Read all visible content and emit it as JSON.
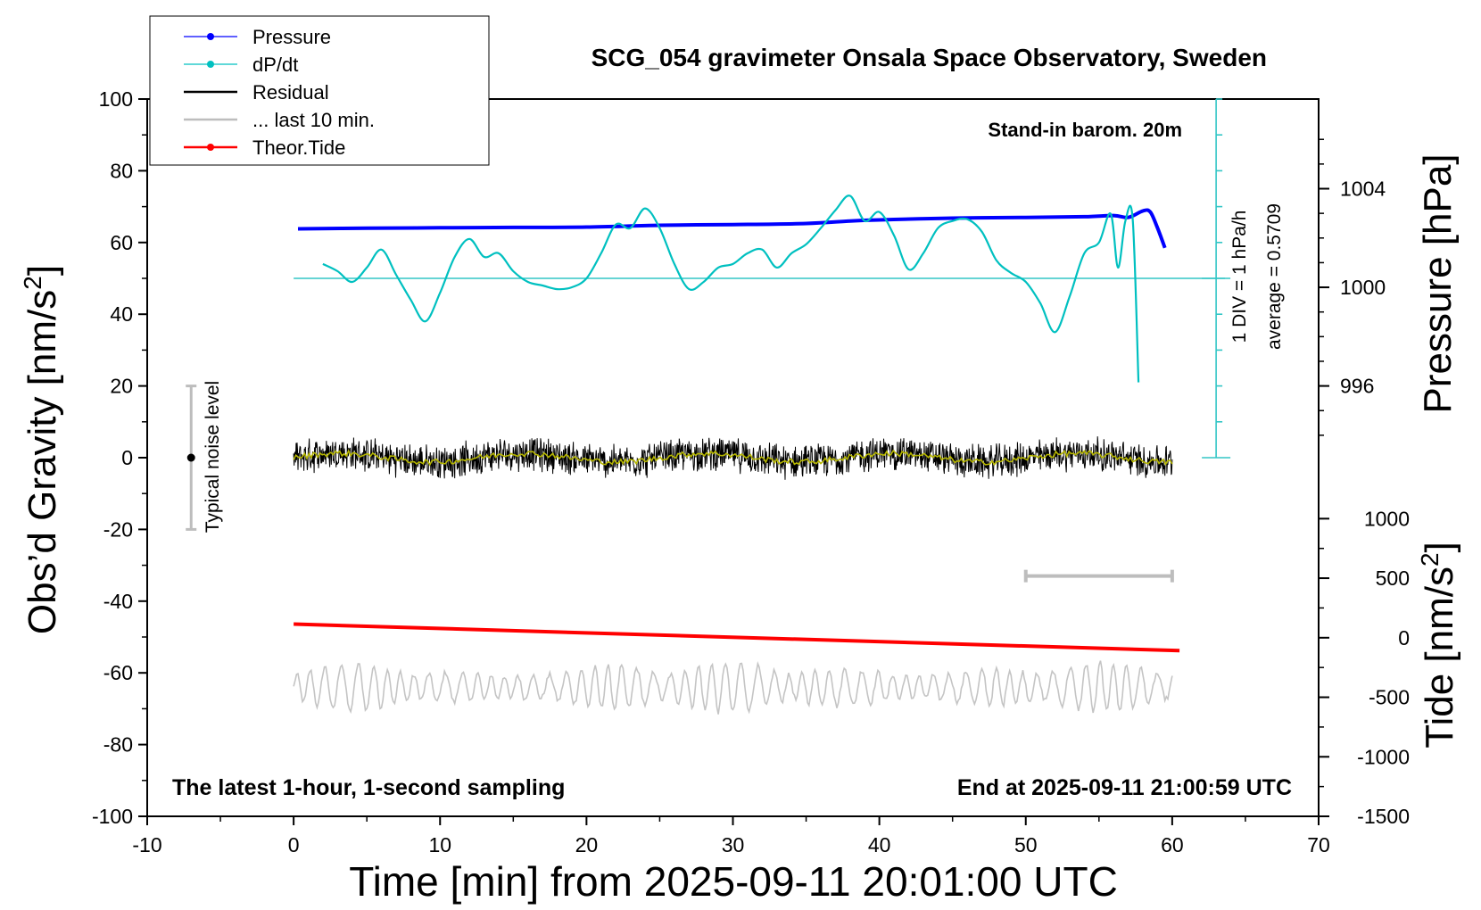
{
  "chart_data": {
    "type": "line",
    "title": "SCG_054 gravimeter Onsala Space Observatory, Sweden",
    "xlabel": "Time [min] from 2025-09-11 20:01:00 UTC",
    "ylabel_left_main": "Obs’d Gravity [nm/s",
    "ylabel_left_sup": "2",
    "ylabel_left_end": "]",
    "ylabel_right_top": "Pressure [hPa]",
    "ylabel_right_bottom_main": "Tide [nm/s",
    "ylabel_right_bottom_sup": "2",
    "ylabel_right_bottom_end": "]",
    "xlim": [
      -10,
      70
    ],
    "ylim": [
      -100,
      100
    ],
    "x_ticks": [
      "-10",
      "0",
      "10",
      "20",
      "30",
      "40",
      "50",
      "60",
      "70"
    ],
    "y_ticks": [
      "-100",
      "-80",
      "-60",
      "-40",
      "-20",
      "0",
      "20",
      "40",
      "60",
      "80",
      "100"
    ],
    "pressure_axis": {
      "ticks": [
        "996",
        "1000",
        "1004"
      ],
      "tick_values": [
        996,
        1000,
        1004
      ],
      "gravity_equiv": [
        [
          996,
          20
        ],
        [
          1000,
          50
        ],
        [
          1004,
          75
        ]
      ]
    },
    "tide_axis": {
      "ticks": [
        "1000",
        "500",
        "0",
        "-500",
        "-1000",
        "-1500"
      ],
      "tick_values": [
        1000,
        500,
        0,
        -500,
        -1000,
        -1500
      ],
      "gravity_equiv": [
        [
          1000,
          -17
        ],
        [
          -1500,
          -100
        ]
      ]
    },
    "legend": [
      {
        "label": "Pressure",
        "color": "#0000ff",
        "marker": true
      },
      {
        "label": "dP/dt",
        "color": "#00c0c0",
        "marker": true
      },
      {
        "label": "Residual",
        "color": "#000000",
        "marker": false
      },
      {
        "label": "... last 10 min.",
        "color": "#bdbdbd",
        "marker": false
      },
      {
        "label": "Theor.Tide",
        "color": "#ff0000",
        "marker": true
      }
    ],
    "annotations": {
      "barometer": "Stand-in barom. 20m",
      "scale_div": "1 DIV = 1 hPa/h",
      "scale_avg": "average = 0.5709",
      "noise": "Typical noise level",
      "bottom_left": "The latest 1-hour, 1-second sampling",
      "bottom_right": "End at 2025-09-11 21:00:59 UTC"
    },
    "dpdt_axis": {
      "x": 63,
      "ylim": [
        0,
        100
      ],
      "zero_line_y": 50
    },
    "noise_bar": {
      "x": -7,
      "low": -20,
      "high": 20,
      "center": 0
    },
    "last10_bar": {
      "x_start": 50,
      "x_end": 60,
      "y": -33
    },
    "series": [
      {
        "name": "Pressure",
        "color": "#0000ff",
        "points": [
          [
            0.3,
            63.8
          ],
          [
            5,
            64
          ],
          [
            10,
            64.1
          ],
          [
            15,
            64.2
          ],
          [
            20,
            64.3
          ],
          [
            25,
            64.8
          ],
          [
            30,
            65
          ],
          [
            35,
            65.3
          ],
          [
            38,
            66
          ],
          [
            40,
            66.3
          ],
          [
            45,
            66.8
          ],
          [
            50,
            67
          ],
          [
            54,
            67.2
          ],
          [
            56,
            67.5
          ],
          [
            57,
            67
          ],
          [
            58,
            68.8
          ],
          [
            58.5,
            68.5
          ],
          [
            59,
            64
          ],
          [
            59.5,
            58.5
          ]
        ]
      },
      {
        "name": "dP/dt",
        "color": "#00c0c0",
        "points": [
          [
            2,
            54
          ],
          [
            3,
            52
          ],
          [
            4,
            49
          ],
          [
            5,
            53
          ],
          [
            6,
            58
          ],
          [
            7,
            51
          ],
          [
            8,
            44
          ],
          [
            9,
            38
          ],
          [
            10,
            46
          ],
          [
            11,
            56
          ],
          [
            12,
            61
          ],
          [
            13,
            56
          ],
          [
            14,
            57
          ],
          [
            15,
            52
          ],
          [
            16,
            49
          ],
          [
            17,
            48
          ],
          [
            18,
            47
          ],
          [
            19,
            47.5
          ],
          [
            20,
            50
          ],
          [
            21,
            57
          ],
          [
            22,
            65
          ],
          [
            23,
            64
          ],
          [
            24,
            69.5
          ],
          [
            25,
            64
          ],
          [
            26,
            54
          ],
          [
            27,
            47
          ],
          [
            28,
            49
          ],
          [
            29,
            53
          ],
          [
            30,
            54
          ],
          [
            31,
            57
          ],
          [
            32,
            58
          ],
          [
            33,
            53
          ],
          [
            34,
            57
          ],
          [
            35,
            59.5
          ],
          [
            36,
            64
          ],
          [
            37,
            69
          ],
          [
            38,
            73
          ],
          [
            39,
            66
          ],
          [
            40,
            68.5
          ],
          [
            41,
            62
          ],
          [
            42,
            52.5
          ],
          [
            43,
            57
          ],
          [
            44,
            64
          ],
          [
            45,
            66
          ],
          [
            46,
            66.5
          ],
          [
            47,
            63
          ],
          [
            48,
            55
          ],
          [
            49,
            51.5
          ],
          [
            50,
            49
          ],
          [
            51,
            43
          ],
          [
            52,
            35
          ],
          [
            53,
            45
          ],
          [
            54,
            57
          ],
          [
            55,
            60
          ],
          [
            55.8,
            68
          ],
          [
            56.3,
            53
          ],
          [
            56.8,
            66
          ],
          [
            57.3,
            66.5
          ],
          [
            57.7,
            21
          ]
        ]
      },
      {
        "name": "Theor.Tide",
        "color": "#ff0000",
        "points": [
          [
            0,
            -46.4
          ],
          [
            60.5,
            -53.8
          ]
        ]
      }
    ],
    "residual": {
      "x_start": 0,
      "x_end": 60,
      "mean": 0,
      "noise_amplitude": 9
    },
    "last10min": {
      "x_start": 0,
      "x_end": 60,
      "mean": -64,
      "amplitude": 7
    }
  }
}
